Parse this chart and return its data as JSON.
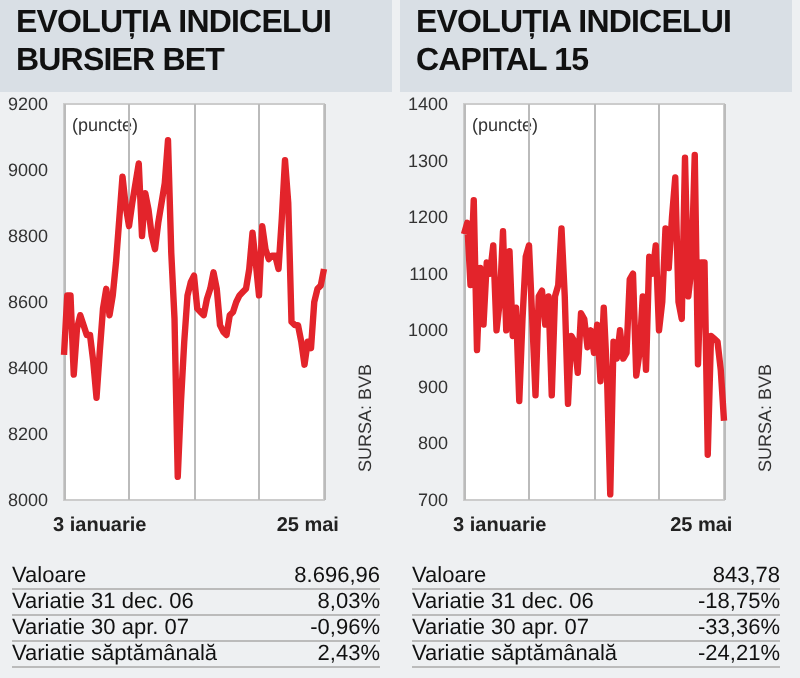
{
  "chart_data": [
    {
      "type": "line",
      "title": "EVOLUȚIA INDICELUI BURSIER BET",
      "ylabel": "(puncte)",
      "categories": [
        null,
        null,
        null,
        null,
        null,
        null,
        null,
        null,
        null,
        null,
        null,
        "3 ianuarie",
        null,
        null,
        null,
        null,
        null,
        null,
        null,
        null,
        null,
        null,
        null,
        null,
        null,
        null,
        null,
        null,
        null,
        null,
        null,
        null,
        null,
        null,
        null,
        null,
        null,
        null,
        null,
        null,
        null,
        null,
        null,
        null,
        null,
        null,
        null,
        null,
        null,
        null,
        null,
        null,
        null,
        null,
        null,
        null,
        null,
        null,
        null,
        null,
        null,
        null,
        null,
        null,
        null,
        null,
        null,
        null,
        null,
        null,
        null,
        null,
        null,
        null,
        null,
        "25 mai",
        null,
        null,
        null,
        null,
        null
      ],
      "series": [
        {
          "color": "#e3242b",
          "values": [
            8440,
            8620,
            8620,
            8380,
            8520,
            8560,
            8530,
            8500,
            8500,
            8420,
            8310,
            8450,
            8580,
            8640,
            8560,
            8620,
            8720,
            8850,
            8980,
            8890,
            8830,
            8900,
            8960,
            9020,
            8800,
            8930,
            8880,
            8800,
            8760,
            8840,
            8900,
            8960,
            9090,
            8750,
            8550,
            8070,
            8300,
            8480,
            8620,
            8660,
            8680,
            8580,
            8570,
            8560,
            8610,
            8640,
            8690,
            8640,
            8530,
            8510,
            8500,
            8560,
            8570,
            8600,
            8620,
            8630,
            8640,
            8700,
            8810,
            8720,
            8620,
            8830,
            8760,
            8730,
            8740,
            8740,
            8700,
            8850,
            9030,
            8900,
            8540,
            8530,
            8530,
            8480,
            8410,
            8480,
            8460,
            8600,
            8640,
            8650,
            8700
          ]
        }
      ],
      "ylim": [
        8000,
        9200
      ],
      "yticks": [
        8000,
        8200,
        8400,
        8600,
        8800,
        9000,
        9200
      ],
      "grid": "x",
      "annotations": [
        "Valoare",
        "8.696,96",
        "Variatie 31 dec. 06",
        "8,03%",
        "Variatie 30 apr. 07",
        "-0,96%",
        "Variatie săptămânală",
        "2,43%",
        "SURSA: BVB"
      ]
    },
    {
      "type": "line",
      "title": "EVOLUȚIA INDICELUI CAPITAL 15",
      "ylabel": "(puncte)",
      "categories": [
        null,
        null,
        null,
        null,
        null,
        null,
        null,
        null,
        null,
        null,
        null,
        "3 ianuarie",
        null,
        null,
        null,
        null,
        null,
        null,
        null,
        null,
        null,
        null,
        null,
        null,
        null,
        null,
        null,
        null,
        null,
        null,
        null,
        null,
        null,
        null,
        null,
        null,
        null,
        null,
        null,
        null,
        null,
        null,
        null,
        null,
        null,
        null,
        null,
        null,
        null,
        null,
        null,
        null,
        null,
        null,
        null,
        null,
        null,
        null,
        null,
        null,
        null,
        null,
        null,
        null,
        null,
        null,
        null,
        null,
        null,
        null,
        null,
        null,
        null,
        "25 mai",
        null,
        null,
        null,
        null,
        null,
        null,
        null
      ],
      "series": [
        {
          "color": "#e3242b",
          "values": [
            1170,
            1190,
            1080,
            1230,
            965,
            1110,
            1010,
            1120,
            1100,
            1150,
            1000,
            1050,
            1175,
            1000,
            1140,
            990,
            1040,
            875,
            1020,
            1130,
            1150,
            1020,
            885,
            1060,
            1070,
            1010,
            1060,
            885,
            1060,
            1080,
            1180,
            1060,
            870,
            990,
            980,
            925,
            1030,
            1020,
            970,
            1000,
            960,
            1010,
            910,
            1040,
            920,
            710,
            980,
            950,
            1000,
            950,
            960,
            1090,
            1100,
            920,
            960,
            1060,
            930,
            1130,
            1100,
            1150,
            1000,
            1050,
            1180,
            1110,
            1200,
            1270,
            1050,
            1020,
            1305,
            1060,
            1110,
            1310,
            940,
            1120,
            1120,
            780,
            990,
            985,
            980,
            930,
            840
          ]
        }
      ],
      "ylim": [
        700,
        1400
      ],
      "yticks": [
        700,
        800,
        900,
        1000,
        1100,
        1200,
        1300,
        1400
      ],
      "grid": "x",
      "annotations": [
        "Valoare",
        "843,78",
        "Variatie 31 dec. 06",
        "-18,75%",
        "Variatie 30 apr. 07",
        "-33,36%",
        "Variatie săptămânală",
        "-24,21%",
        "SURSA: BVB"
      ]
    }
  ]
}
